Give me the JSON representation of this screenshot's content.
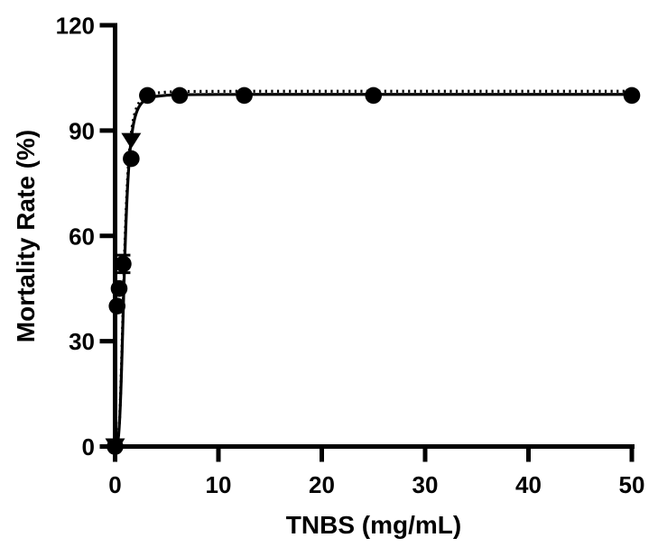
{
  "figure": {
    "background": "#ffffff",
    "ink": "#000000"
  },
  "chart_data": {
    "type": "scatter",
    "title": "",
    "xlabel": "TNBS (mg/mL)",
    "ylabel": "Mortality Rate (%)",
    "xlim": [
      0,
      50
    ],
    "ylim": [
      0,
      120
    ],
    "x_ticks": [
      0,
      10,
      20,
      30,
      40,
      50
    ],
    "y_ticks": [
      0,
      30,
      60,
      90,
      120
    ],
    "grid": false,
    "legend": false,
    "series": [
      {
        "name": "TNBS mortality (circle markers)",
        "marker": "circle",
        "line": "solid",
        "color": "#000000",
        "points": [
          [
            0,
            0
          ],
          [
            0.195,
            40
          ],
          [
            0.39,
            45
          ],
          [
            0.78,
            52
          ],
          [
            1.56,
            82
          ],
          [
            3.13,
            100
          ],
          [
            6.25,
            100
          ],
          [
            12.5,
            100
          ],
          [
            25,
            100
          ],
          [
            50,
            100
          ]
        ],
        "error_bars": [
          {
            "x": 0.78,
            "y": 52,
            "plus": 2.5,
            "minus": 2.5
          }
        ],
        "fit": {
          "model": "hill",
          "top": 100.3,
          "ec50": 0.9,
          "slope": 3.5
        }
      },
      {
        "name": "TNBS mortality (triangle markers)",
        "marker": "triangle-down",
        "line": "dotted",
        "color": "#000000",
        "points": [
          [
            0,
            0
          ],
          [
            1.56,
            87
          ]
        ],
        "error_bars": [],
        "fit": {
          "model": "hill",
          "top": 101.2,
          "ec50": 0.88,
          "slope": 3.5
        }
      }
    ]
  }
}
